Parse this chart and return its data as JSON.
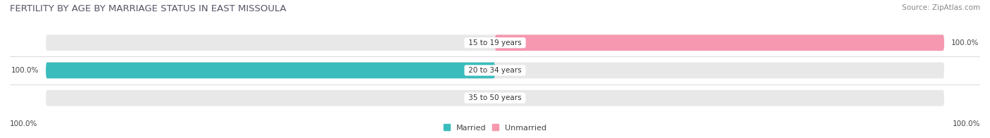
{
  "title": "FERTILITY BY AGE BY MARRIAGE STATUS IN EAST MISSOULA",
  "source": "Source: ZipAtlas.com",
  "categories": [
    "15 to 19 years",
    "20 to 34 years",
    "35 to 50 years"
  ],
  "married_values": [
    0.0,
    100.0,
    0.0
  ],
  "unmarried_values": [
    100.0,
    0.0,
    0.0
  ],
  "married_color": "#3bbcbc",
  "unmarried_color": "#f598b0",
  "bar_bg_color": "#e8e8e8",
  "bar_height": 0.58,
  "title_fontsize": 9.5,
  "source_fontsize": 7.5,
  "label_fontsize": 7.5,
  "category_fontsize": 7.5,
  "legend_fontsize": 8,
  "axis_label_fontsize": 7.5,
  "left_axis_label": "100.0%",
  "right_axis_label": "100.0%",
  "background_color": "#ffffff",
  "title_color": "#555566",
  "source_color": "#888888",
  "label_color": "#444444",
  "separator_color": "#dddddd"
}
